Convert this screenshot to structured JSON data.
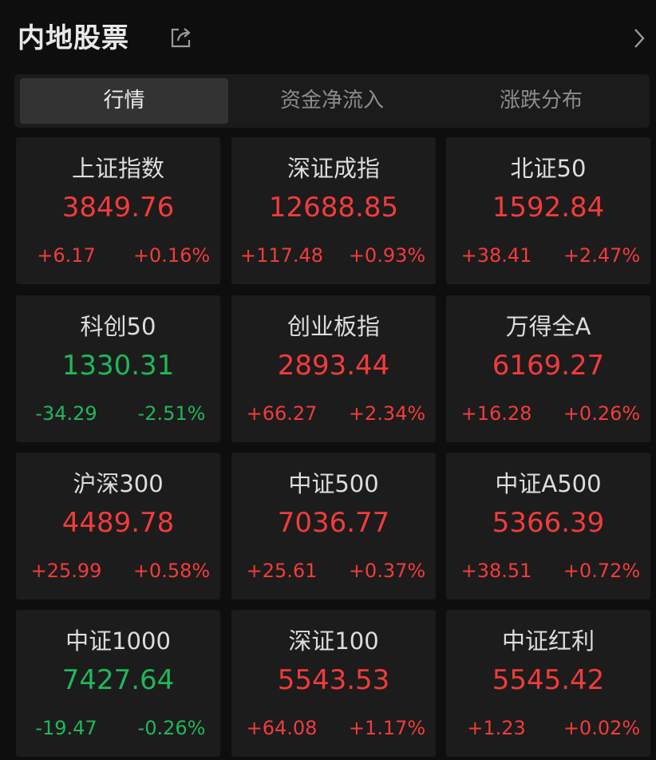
{
  "header": {
    "title": "内地股票"
  },
  "tabs": [
    "行情",
    "资金净流入",
    "涨跌分布"
  ],
  "cards": [
    {
      "name": "上证指数",
      "price": "3849.76",
      "change": "+6.17",
      "percent": "+0.16%"
    },
    {
      "name": "深证成指",
      "price": "12688.85",
      "change": "+117.48",
      "percent": "+0.93%"
    },
    {
      "name": "北证50",
      "price": "1592.84",
      "change": "+38.41",
      "percent": "+2.47%"
    },
    {
      "name": "科创50",
      "price": "1330.31",
      "change": "-34.29",
      "percent": "-2.51%"
    },
    {
      "name": "创业板指",
      "price": "2893.44",
      "change": "+66.27",
      "percent": "+2.34%"
    },
    {
      "name": "万得全A",
      "price": "6169.27",
      "change": "+16.28",
      "percent": "+0.26%"
    },
    {
      "name": "沪深300",
      "price": "4489.78",
      "change": "+25.99",
      "percent": "+0.58%"
    },
    {
      "name": "中证500",
      "price": "7036.77",
      "change": "+25.61",
      "percent": "+0.37%"
    },
    {
      "name": "中证A500",
      "price": "5366.39",
      "change": "+38.51",
      "percent": "+0.72%"
    },
    {
      "name": "中证1000",
      "price": "7427.64",
      "change": "-19.47",
      "percent": "-0.26%"
    },
    {
      "name": "深证100",
      "price": "5543.53",
      "change": "+64.08",
      "percent": "+1.17%"
    },
    {
      "name": "中证红利",
      "price": "5545.42",
      "change": "+1.23",
      "percent": "+0.02%"
    }
  ]
}
